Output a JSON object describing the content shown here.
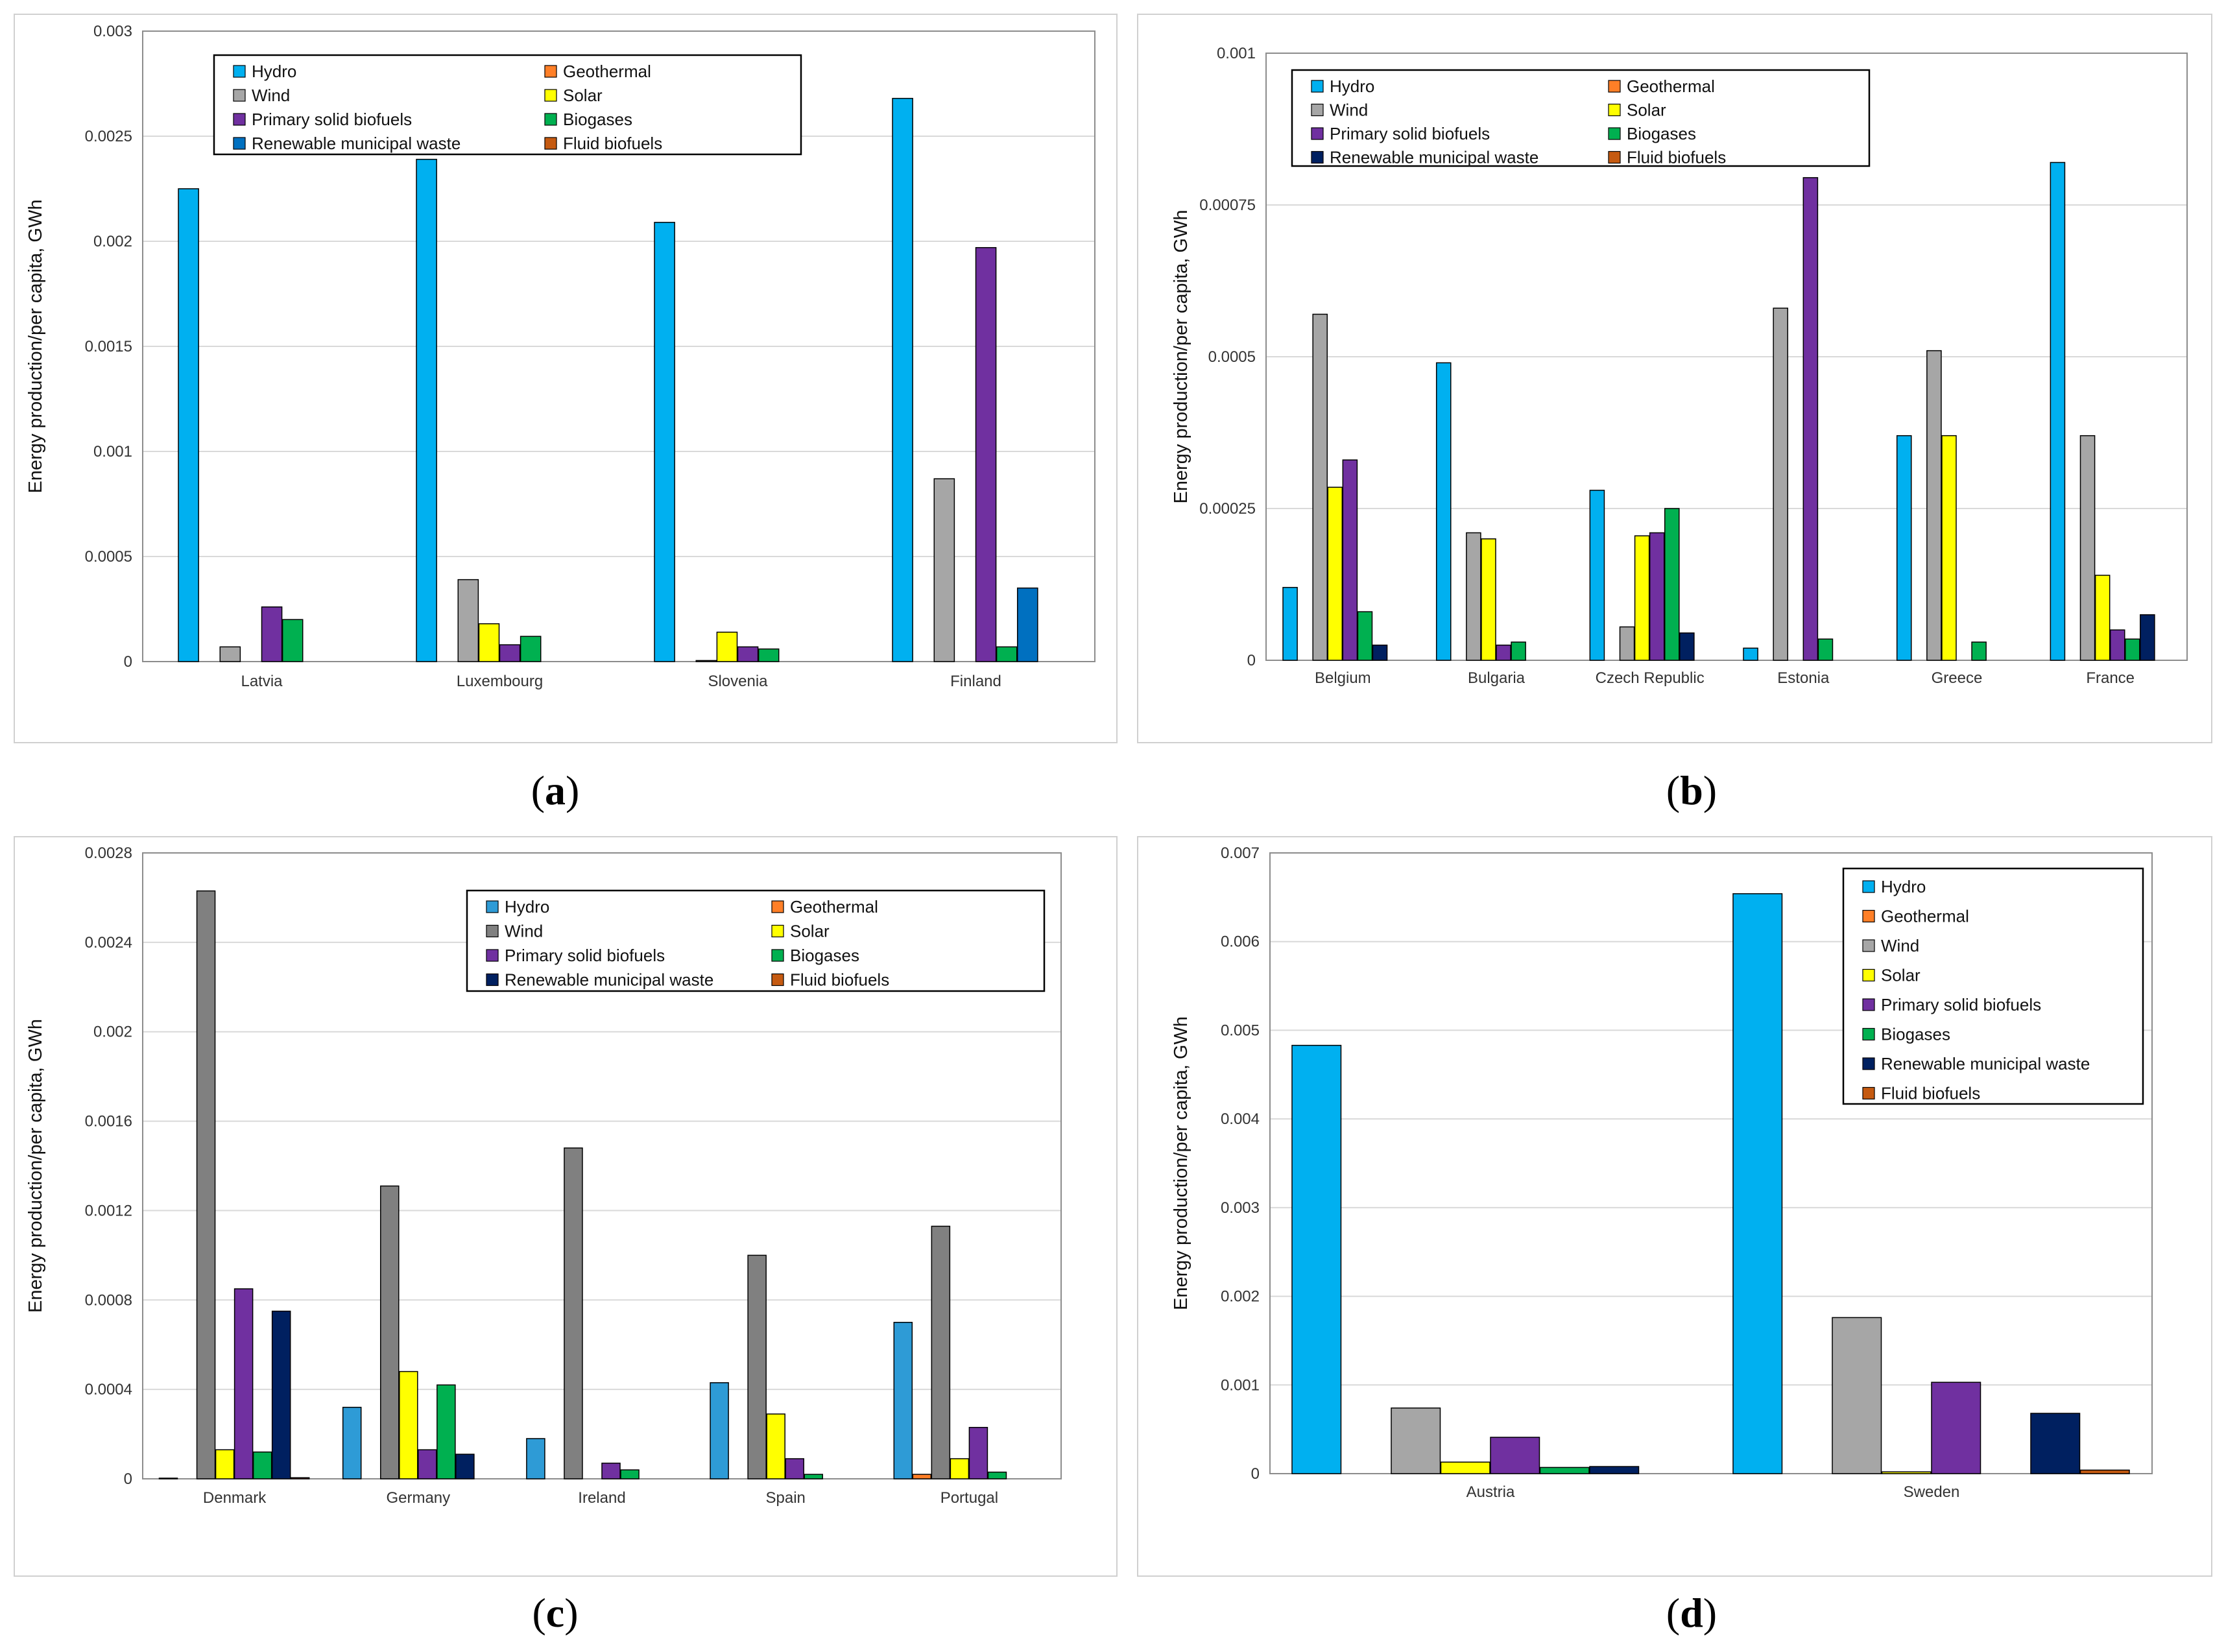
{
  "colors": {
    "Hydro": "#00b0f0",
    "Geothermal": "#ff7f27",
    "Wind": "#a6a6a6",
    "Solar": "#ffff00",
    "Primary solid biofuels": "#7030a0",
    "Biogases": "#00b050",
    "Renewable municipal waste": "#0070c0",
    "Fluid biofuels": "#c55a11"
  },
  "chart_data": [
    {
      "type": "bar",
      "panel_label": "(a)",
      "ylabel": "Energy production/per capita, GWh",
      "ylim": [
        0,
        0.003
      ],
      "yticks": [
        "0",
        "0.0005",
        "0.001",
        "0.0015",
        "0.002",
        "0.0025",
        "0.003"
      ],
      "ytick_values": [
        0,
        0.0005,
        0.001,
        0.0015,
        0.002,
        0.0025,
        0.003
      ],
      "categories": [
        "Latvia",
        "Luxembourg",
        "Slovenia",
        "Finland"
      ],
      "legend": [
        "Hydro",
        "Geothermal",
        "Wind",
        "Solar",
        "Primary solid biofuels",
        "Biogases",
        "Renewable municipal waste",
        "Fluid biofuels"
      ],
      "colors": {
        "Wind": "#a6a6a6",
        "Renewable municipal waste": "#0070c0"
      },
      "series": [
        {
          "name": "Hydro",
          "values": [
            0.00225,
            0.00239,
            0.00209,
            0.00268
          ]
        },
        {
          "name": "Geothermal",
          "values": [
            0,
            0,
            0,
            0
          ]
        },
        {
          "name": "Wind",
          "values": [
            7e-05,
            0.00039,
            5e-06,
            0.00087
          ]
        },
        {
          "name": "Solar",
          "values": [
            0,
            0.00018,
            0.00014,
            0
          ]
        },
        {
          "name": "Primary solid biofuels",
          "values": [
            0.00026,
            8e-05,
            7e-05,
            0.00197
          ]
        },
        {
          "name": "Biogases",
          "values": [
            0.0002,
            0.00012,
            6e-05,
            7e-05
          ]
        },
        {
          "name": "Renewable municipal waste",
          "values": [
            0,
            0,
            0,
            0.00035
          ]
        },
        {
          "name": "Fluid biofuels",
          "values": [
            0,
            0,
            0,
            0
          ]
        }
      ]
    },
    {
      "type": "bar",
      "panel_label": "(b)",
      "ylabel": "Energy production/per capita, GWh",
      "ylim": [
        0,
        0.001
      ],
      "yticks": [
        "0",
        "0.00025",
        "0.0005",
        "0.00075",
        "0.001"
      ],
      "ytick_values": [
        0,
        0.00025,
        0.0005,
        0.00075,
        0.001
      ],
      "categories": [
        "Belgium",
        "Bulgaria",
        "Czech Republic",
        "Estonia",
        "Greece",
        "France"
      ],
      "legend": [
        "Hydro",
        "Geothermal",
        "Wind",
        "Solar",
        "Primary solid biofuels",
        "Biogases",
        "Renewable municipal waste",
        "Fluid biofuels"
      ],
      "colors": {
        "Wind": "#a6a6a6",
        "Renewable municipal waste": "#002060"
      },
      "series": [
        {
          "name": "Hydro",
          "values": [
            0.00012,
            0.00049,
            0.00028,
            2e-05,
            0.00037,
            0.00082
          ]
        },
        {
          "name": "Geothermal",
          "values": [
            0,
            0,
            0,
            0,
            0,
            0
          ]
        },
        {
          "name": "Wind",
          "values": [
            0.00057,
            0.00021,
            5.5e-05,
            0.00058,
            0.00051,
            0.00037
          ]
        },
        {
          "name": "Solar",
          "values": [
            0.000285,
            0.0002,
            0.000205,
            0,
            0.00037,
            0.00014
          ]
        },
        {
          "name": "Primary solid biofuels",
          "values": [
            0.00033,
            2.5e-05,
            0.00021,
            0.000795,
            0,
            5e-05
          ]
        },
        {
          "name": "Biogases",
          "values": [
            8e-05,
            3e-05,
            0.00025,
            3.5e-05,
            3e-05,
            3.5e-05
          ]
        },
        {
          "name": "Renewable municipal waste",
          "values": [
            2.5e-05,
            0,
            4.5e-05,
            0,
            0,
            7.5e-05
          ]
        },
        {
          "name": "Fluid biofuels",
          "values": [
            0,
            0,
            0,
            0,
            0,
            0
          ]
        }
      ]
    },
    {
      "type": "bar",
      "panel_label": "(c)",
      "ylabel": "Energy production/per capita, GWh",
      "ylim": [
        0,
        0.0028
      ],
      "yticks": [
        "0",
        "0.0004",
        "0.0008",
        "0.0012",
        "0.0016",
        "0.002",
        "0.0024",
        "0.0028"
      ],
      "ytick_values": [
        0,
        0.0004,
        0.0008,
        0.0012,
        0.0016,
        0.002,
        0.0024,
        0.0028
      ],
      "categories": [
        "Denmark",
        "Germany",
        "Ireland",
        "Spain",
        "Portugal"
      ],
      "legend": [
        "Hydro",
        "Geothermal",
        "Wind",
        "Solar",
        "Primary solid biofuels",
        "Biogases",
        "Renewable municipal waste",
        "Fluid biofuels"
      ],
      "colors": {
        "Hydro": "#2e9bd6",
        "Wind": "#808080",
        "Renewable municipal waste": "#002060"
      },
      "series": [
        {
          "name": "Hydro",
          "values": [
            3e-06,
            0.00032,
            0.00018,
            0.00043,
            0.0007
          ]
        },
        {
          "name": "Geothermal",
          "values": [
            0,
            0,
            0,
            0,
            2e-05
          ]
        },
        {
          "name": "Wind",
          "values": [
            0.00263,
            0.00131,
            0.00148,
            0.001,
            0.00113
          ]
        },
        {
          "name": "Solar",
          "values": [
            0.00013,
            0.00048,
            0,
            0.00029,
            9e-05
          ]
        },
        {
          "name": "Primary solid biofuels",
          "values": [
            0.00085,
            0.00013,
            7e-05,
            9e-05,
            0.00023
          ]
        },
        {
          "name": "Biogases",
          "values": [
            0.00012,
            0.00042,
            4e-05,
            2e-05,
            3e-05
          ]
        },
        {
          "name": "Renewable municipal waste",
          "values": [
            0.00075,
            0.00011,
            0,
            0,
            0
          ]
        },
        {
          "name": "Fluid biofuels",
          "values": [
            5e-06,
            0,
            0,
            0,
            0
          ]
        }
      ]
    },
    {
      "type": "bar",
      "panel_label": "(d)",
      "ylabel": "Energy production/per capita, GWh",
      "ylim": [
        0,
        0.007
      ],
      "yticks": [
        "0",
        "0.001",
        "0.002",
        "0.003",
        "0.004",
        "0.005",
        "0.006",
        "0.007"
      ],
      "ytick_values": [
        0,
        0.001,
        0.002,
        0.003,
        0.004,
        0.005,
        0.006,
        0.007
      ],
      "categories": [
        "Austria",
        "Sweden"
      ],
      "legend": [
        "Hydro",
        "Geothermal",
        "Wind",
        "Solar",
        "Primary solid biofuels",
        "Biogases",
        "Renewable municipal waste",
        "Fluid biofuels"
      ],
      "colors": {
        "Wind": "#a6a6a6",
        "Renewable municipal waste": "#002060"
      },
      "series": [
        {
          "name": "Hydro",
          "values": [
            0.00483,
            0.00654
          ]
        },
        {
          "name": "Geothermal",
          "values": [
            0,
            0
          ]
        },
        {
          "name": "Wind",
          "values": [
            0.00074,
            0.00176
          ]
        },
        {
          "name": "Solar",
          "values": [
            0.00013,
            2e-05
          ]
        },
        {
          "name": "Primary solid biofuels",
          "values": [
            0.00041,
            0.00103
          ]
        },
        {
          "name": "Biogases",
          "values": [
            7e-05,
            0
          ]
        },
        {
          "name": "Renewable municipal waste",
          "values": [
            8e-05,
            0.00068
          ]
        },
        {
          "name": "Fluid biofuels",
          "values": [
            0,
            4e-05
          ]
        }
      ]
    }
  ]
}
